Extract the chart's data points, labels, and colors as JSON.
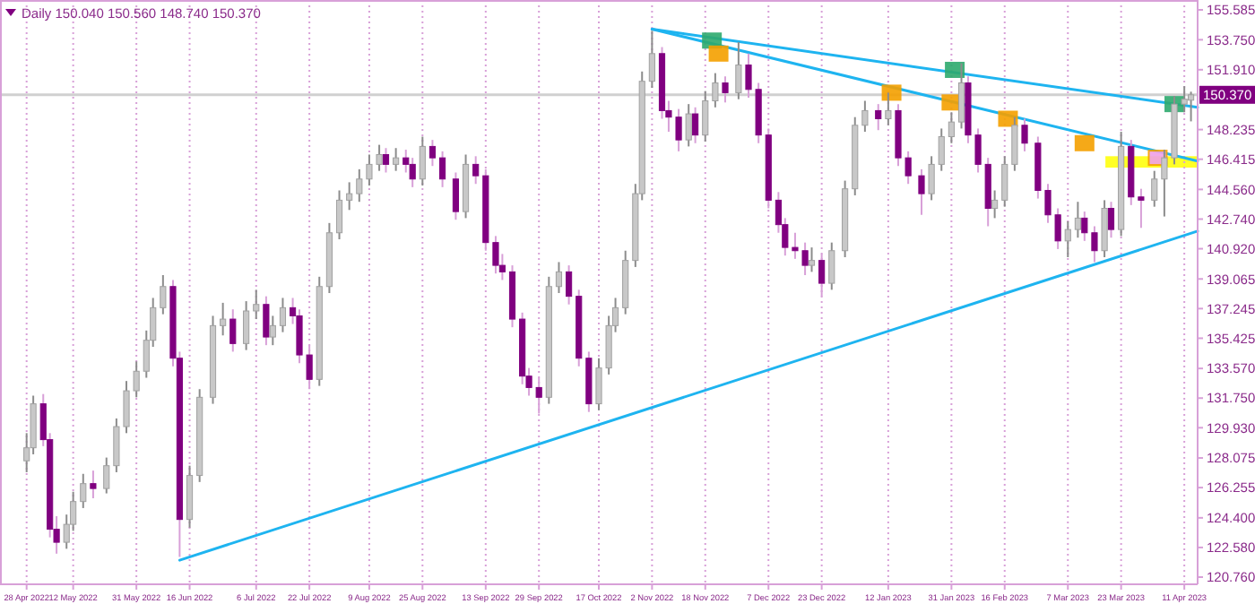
{
  "chart_data": {
    "type": "candlestick",
    "title": "Daily 150.040 150.560 148.740 150.370",
    "colors": [
      "#c8c8c8",
      "#c8c8c8",
      "#800080",
      "#800080",
      "#800080",
      "#c8c8c8",
      "#c8c8c8",
      "#c8c8c8",
      "#800080",
      "#c8c8c8",
      "#c8c8c8",
      "#c8c8c8",
      "#c8c8c8",
      "#c8c8c8",
      "#c8c8c8",
      "#c8c8c8",
      "#800080",
      "#800080",
      "#c8c8c8",
      "#c8c8c8",
      "#c8c8c8",
      "#c8c8c8",
      "#800080",
      "#c8c8c8",
      "#c8c8c8",
      "#800080",
      "#c8c8c8",
      "#c8c8c8",
      "#800080",
      "#800080",
      "#800080",
      "#c8c8c8",
      "#c8c8c8",
      "#c8c8c8",
      "#c8c8c8",
      "#c8c8c8",
      "#c8c8c8",
      "#c8c8c8",
      "#800080",
      "#c8c8c8",
      "#800080",
      "#800080",
      "#c8c8c8",
      "#800080",
      "#800080",
      "#800080",
      "#c8c8c8",
      "#800080",
      "#800080",
      "#800080",
      "#800080",
      "#800080",
      "#800080",
      "#800080",
      "#800080",
      "#c8c8c8",
      "#c8c8c8",
      "#800080",
      "#800080",
      "#800080",
      "#c8c8c8",
      "#c8c8c8",
      "#c8c8c8",
      "#c8c8c8",
      "#c8c8c8",
      "#c8c8c8",
      "#c8c8c8",
      "#800080",
      "#800080",
      "#800080",
      "#c8c8c8",
      "#800080",
      "#c8c8c8",
      "#c8c8c8",
      "#800080",
      "#c8c8c8",
      "#800080",
      "#800080",
      "#800080",
      "#800080",
      "#800080",
      "#800080",
      "#800080",
      "#c8c8c8",
      "#800080",
      "#c8c8c8",
      "#c8c8c8",
      "#c8c8c8",
      "#c8c8c8",
      "#800080",
      "#c8c8c8",
      "#800080",
      "#800080",
      "#800080",
      "#c8c8c8",
      "#c8c8c8",
      "#c8c8c8",
      "#c8c8c8",
      "#800080",
      "#800080",
      "#800080",
      "#c8c8c8",
      "#c8c8c8",
      "#c8c8c8",
      "#800080",
      "#800080",
      "#800080",
      "#800080",
      "#c8c8c8",
      "#c8c8c8",
      "#800080",
      "#800080",
      "#c8c8c8",
      "#800080",
      "#c8c8c8",
      "#800080",
      "#800080",
      "#c8c8c8",
      "#c8c8c8",
      "#c8c8c8",
      "#c8c8c8",
      "#c8c8c8"
    ],
    "x": [
      "2022-04-28",
      "2022-04-30",
      "2022-05-03",
      "2022-05-05",
      "2022-05-07",
      "2022-05-10",
      "2022-05-12",
      "2022-05-15",
      "2022-05-18",
      "2022-05-22",
      "2022-05-25",
      "2022-05-28",
      "2022-05-31",
      "2022-06-03",
      "2022-06-05",
      "2022-06-08",
      "2022-06-11",
      "2022-06-13",
      "2022-06-16",
      "2022-06-19",
      "2022-06-23",
      "2022-06-26",
      "2022-06-29",
      "2022-07-03",
      "2022-07-06",
      "2022-07-09",
      "2022-07-11",
      "2022-07-14",
      "2022-07-17",
      "2022-07-19",
      "2022-07-22",
      "2022-07-25",
      "2022-07-28",
      "2022-07-31",
      "2022-08-03",
      "2022-08-06",
      "2022-08-09",
      "2022-08-12",
      "2022-08-14",
      "2022-08-17",
      "2022-08-20",
      "2022-08-22",
      "2022-08-25",
      "2022-08-28",
      "2022-08-31",
      "2022-09-04",
      "2022-09-07",
      "2022-09-10",
      "2022-09-13",
      "2022-09-16",
      "2022-09-18",
      "2022-09-21",
      "2022-09-24",
      "2022-09-26",
      "2022-09-29",
      "2022-10-02",
      "2022-10-05",
      "2022-10-08",
      "2022-10-11",
      "2022-10-14",
      "2022-10-17",
      "2022-10-20",
      "2022-10-22",
      "2022-10-25",
      "2022-10-28",
      "2022-10-30",
      "2022-11-02",
      "2022-11-05",
      "2022-11-07",
      "2022-11-10",
      "2022-11-13",
      "2022-11-15",
      "2022-11-18",
      "2022-11-21",
      "2022-11-24",
      "2022-11-28",
      "2022-12-01",
      "2022-12-04",
      "2022-12-07",
      "2022-12-10",
      "2022-12-12",
      "2022-12-15",
      "2022-12-18",
      "2022-12-20",
      "2022-12-23",
      "2022-12-26",
      "2022-12-30",
      "2023-01-02",
      "2023-01-05",
      "2023-01-09",
      "2023-01-12",
      "2023-01-15",
      "2023-01-18",
      "2023-01-22",
      "2023-01-25",
      "2023-01-28",
      "2023-01-31",
      "2023-02-03",
      "2023-02-05",
      "2023-02-08",
      "2023-02-11",
      "2023-02-13",
      "2023-02-16",
      "2023-02-19",
      "2023-02-22",
      "2023-02-26",
      "2023-03-01",
      "2023-03-04",
      "2023-03-07",
      "2023-03-10",
      "2023-03-12",
      "2023-03-15",
      "2023-03-18",
      "2023-03-20",
      "2023-03-23",
      "2023-03-26",
      "2023-03-29",
      "2023-04-02",
      "2023-04-05",
      "2023-04-08",
      "2023-04-11",
      "2023-04-13"
    ],
    "ohlc": [
      [
        127.9,
        129.6,
        127.2,
        128.7
      ],
      [
        128.7,
        131.9,
        128.3,
        131.4
      ],
      [
        131.4,
        132.0,
        128.8,
        129.2
      ],
      [
        129.2,
        129.6,
        123.2,
        123.7
      ],
      [
        123.7,
        124.5,
        122.2,
        122.9
      ],
      [
        122.9,
        124.6,
        122.5,
        124.0
      ],
      [
        124.0,
        126.0,
        123.6,
        125.4
      ],
      [
        125.4,
        127.1,
        125.0,
        126.5
      ],
      [
        126.5,
        127.3,
        125.6,
        126.2
      ],
      [
        126.2,
        128.1,
        125.9,
        127.6
      ],
      [
        127.6,
        130.5,
        127.2,
        130.0
      ],
      [
        130.0,
        132.8,
        129.6,
        132.2
      ],
      [
        132.2,
        134.0,
        131.8,
        133.4
      ],
      [
        133.4,
        135.9,
        133.0,
        135.3
      ],
      [
        135.3,
        137.9,
        134.9,
        137.3
      ],
      [
        137.3,
        139.3,
        136.9,
        138.6
      ],
      [
        138.6,
        139.0,
        133.7,
        134.2
      ],
      [
        134.2,
        134.6,
        122.0,
        124.3
      ],
      [
        124.3,
        127.6,
        123.8,
        127.0
      ],
      [
        127.0,
        132.3,
        126.6,
        131.8
      ],
      [
        131.8,
        136.8,
        131.4,
        136.2
      ],
      [
        136.2,
        137.6,
        135.6,
        136.6
      ],
      [
        136.6,
        137.2,
        134.6,
        135.1
      ],
      [
        135.1,
        137.7,
        134.7,
        137.1
      ],
      [
        137.1,
        138.4,
        136.6,
        137.5
      ],
      [
        137.5,
        138.0,
        135.0,
        135.5
      ],
      [
        135.5,
        136.8,
        135.0,
        136.2
      ],
      [
        136.2,
        137.9,
        135.8,
        137.3
      ],
      [
        137.3,
        137.9,
        136.3,
        136.8
      ],
      [
        136.8,
        137.2,
        133.9,
        134.4
      ],
      [
        134.4,
        135.0,
        132.3,
        132.9
      ],
      [
        132.9,
        139.2,
        132.5,
        138.6
      ],
      [
        138.6,
        142.5,
        138.2,
        141.9
      ],
      [
        141.9,
        144.5,
        141.5,
        143.9
      ],
      [
        143.9,
        145.0,
        143.3,
        144.3
      ],
      [
        144.3,
        145.8,
        143.8,
        145.2
      ],
      [
        145.2,
        146.7,
        144.8,
        146.1
      ],
      [
        146.1,
        147.3,
        145.7,
        146.7
      ],
      [
        146.7,
        147.1,
        145.6,
        146.1
      ],
      [
        146.1,
        147.1,
        145.7,
        146.5
      ],
      [
        146.5,
        147.0,
        145.6,
        146.1
      ],
      [
        146.1,
        146.5,
        144.7,
        145.2
      ],
      [
        145.2,
        147.8,
        144.8,
        147.2
      ],
      [
        147.2,
        147.6,
        146.0,
        146.5
      ],
      [
        146.5,
        146.9,
        144.7,
        145.2
      ],
      [
        145.2,
        145.6,
        142.7,
        143.2
      ],
      [
        143.2,
        146.7,
        142.8,
        146.1
      ],
      [
        146.1,
        146.6,
        144.9,
        145.4
      ],
      [
        145.4,
        145.8,
        140.8,
        141.3
      ],
      [
        141.3,
        141.7,
        139.4,
        139.9
      ],
      [
        139.9,
        140.6,
        139.0,
        139.5
      ],
      [
        139.5,
        139.9,
        136.1,
        136.6
      ],
      [
        136.6,
        137.0,
        132.6,
        133.1
      ],
      [
        133.1,
        133.6,
        131.9,
        132.4
      ],
      [
        132.4,
        133.0,
        130.8,
        131.8
      ],
      [
        131.8,
        139.2,
        131.4,
        138.6
      ],
      [
        138.6,
        140.1,
        138.2,
        139.5
      ],
      [
        139.5,
        139.9,
        137.5,
        138.0
      ],
      [
        138.0,
        138.4,
        133.7,
        134.2
      ],
      [
        134.2,
        134.6,
        130.9,
        131.4
      ],
      [
        131.4,
        134.2,
        131.0,
        133.6
      ],
      [
        133.6,
        136.8,
        133.2,
        136.2
      ],
      [
        136.2,
        137.9,
        135.8,
        137.3
      ],
      [
        137.3,
        140.8,
        136.9,
        140.2
      ],
      [
        140.2,
        144.9,
        139.8,
        144.3
      ],
      [
        144.3,
        151.8,
        143.9,
        151.2
      ],
      [
        151.2,
        154.3,
        150.8,
        152.9
      ],
      [
        152.9,
        153.3,
        148.9,
        149.4
      ],
      [
        149.4,
        150.0,
        148.1,
        149.0
      ],
      [
        149.0,
        149.5,
        146.9,
        147.6
      ],
      [
        147.6,
        149.8,
        147.2,
        149.2
      ],
      [
        149.2,
        149.6,
        147.4,
        147.9
      ],
      [
        147.9,
        150.6,
        147.5,
        150.0
      ],
      [
        150.0,
        151.7,
        149.6,
        151.1
      ],
      [
        151.1,
        151.5,
        149.9,
        150.5
      ],
      [
        150.5,
        153.6,
        150.1,
        152.2
      ],
      [
        152.2,
        152.9,
        150.2,
        150.7
      ],
      [
        150.7,
        151.1,
        147.4,
        147.9
      ],
      [
        147.9,
        148.3,
        143.4,
        143.9
      ],
      [
        143.9,
        144.4,
        141.9,
        142.4
      ],
      [
        142.4,
        142.8,
        140.5,
        141.0
      ],
      [
        141.0,
        141.9,
        140.3,
        140.8
      ],
      [
        140.8,
        141.3,
        139.3,
        139.9
      ],
      [
        139.9,
        141.0,
        139.5,
        140.2
      ],
      [
        140.2,
        140.6,
        138.0,
        138.8
      ],
      [
        138.8,
        141.3,
        138.4,
        140.8
      ],
      [
        140.8,
        145.1,
        140.4,
        144.6
      ],
      [
        144.6,
        149.0,
        144.2,
        148.5
      ],
      [
        148.5,
        150.0,
        148.1,
        149.4
      ],
      [
        149.4,
        149.8,
        148.2,
        148.9
      ],
      [
        148.9,
        150.5,
        148.5,
        149.4
      ],
      [
        149.4,
        149.8,
        146.0,
        146.5
      ],
      [
        146.5,
        146.9,
        144.9,
        145.4
      ],
      [
        145.4,
        145.8,
        143.0,
        144.3
      ],
      [
        144.3,
        146.6,
        143.9,
        146.1
      ],
      [
        146.1,
        148.3,
        145.7,
        147.8
      ],
      [
        147.8,
        149.3,
        147.4,
        148.7
      ],
      [
        148.7,
        152.3,
        148.3,
        151.1
      ],
      [
        151.1,
        151.5,
        147.4,
        147.9
      ],
      [
        147.9,
        148.3,
        145.6,
        146.1
      ],
      [
        146.1,
        146.5,
        142.3,
        143.4
      ],
      [
        143.4,
        144.5,
        142.8,
        143.9
      ],
      [
        143.9,
        146.6,
        143.5,
        146.1
      ],
      [
        146.1,
        149.0,
        145.7,
        148.5
      ],
      [
        148.5,
        148.9,
        146.9,
        147.4
      ],
      [
        147.4,
        147.8,
        144.0,
        144.5
      ],
      [
        144.5,
        144.9,
        142.5,
        143.0
      ],
      [
        143.0,
        143.4,
        140.9,
        141.4
      ],
      [
        141.4,
        142.6,
        140.4,
        142.1
      ],
      [
        142.1,
        143.8,
        141.6,
        142.8
      ],
      [
        142.8,
        143.2,
        141.4,
        141.9
      ],
      [
        141.9,
        142.3,
        140.1,
        140.8
      ],
      [
        140.8,
        143.9,
        140.4,
        143.4
      ],
      [
        143.4,
        143.8,
        141.6,
        142.1
      ],
      [
        142.1,
        148.1,
        141.7,
        147.2
      ],
      [
        147.2,
        147.6,
        143.6,
        144.1
      ],
      [
        144.1,
        144.6,
        142.2,
        143.9
      ],
      [
        143.9,
        145.7,
        143.5,
        145.2
      ],
      [
        145.2,
        147.0,
        142.9,
        146.5
      ],
      [
        146.5,
        150.3,
        146.1,
        149.8
      ],
      [
        149.8,
        150.9,
        149.3,
        150.1
      ],
      [
        150.04,
        150.56,
        148.74,
        150.37
      ]
    ],
    "series": [
      {
        "type": "line",
        "color": "#1eb4f0",
        "x": [
          "2022-06-13",
          "2023-04-15"
        ],
        "values": [
          121.8,
          142.0
        ]
      },
      {
        "type": "line",
        "color": "#1eb4f0",
        "x": [
          "2022-11-02",
          "2023-04-15"
        ],
        "values": [
          154.4,
          149.6
        ]
      },
      {
        "type": "line",
        "color": "#1eb4f0",
        "x": [
          "2022-11-02",
          "2023-04-15"
        ],
        "values": [
          154.4,
          146.3
        ]
      },
      {
        "type": "scatter",
        "marker": "square",
        "color": "#2eaa6e",
        "x": [
          "2022-11-20",
          "2023-02-01",
          "2023-04-08"
        ],
        "values": [
          153.7,
          151.9,
          149.8
        ]
      },
      {
        "type": "scatter",
        "marker": "square",
        "color": "#f5a000",
        "colors": [
          "#f5a000",
          "#f5a000",
          "#f5a000",
          "#f5a000",
          "#f5a000",
          "#f0a0e8"
        ],
        "x": [
          "2022-11-22",
          "2023-01-13",
          "2023-01-31",
          "2023-02-17",
          "2023-03-12",
          "2023-04-03"
        ],
        "values": [
          152.9,
          150.5,
          149.9,
          148.9,
          147.4,
          146.5
        ]
      }
    ],
    "ref_lines": [
      {
        "axis": "y",
        "value": 150.37,
        "label": "150.370",
        "color": "#d0d0d0"
      }
    ],
    "xlim": [
      "2022-04-20",
      "2023-04-15"
    ],
    "xticks": [
      {
        "value": "2022-04-28",
        "label": "28 Apr 2022"
      },
      {
        "value": "2022-05-12",
        "label": "12 May 2022"
      },
      {
        "value": "2022-05-31",
        "label": "31 May 2022"
      },
      {
        "value": "2022-06-16",
        "label": "16 Jun 2022"
      },
      {
        "value": "2022-07-06",
        "label": "6 Jul 2022"
      },
      {
        "value": "2022-07-22",
        "label": "22 Jul 2022"
      },
      {
        "value": "2022-08-09",
        "label": "9 Aug 2022"
      },
      {
        "value": "2022-08-25",
        "label": "25 Aug 2022"
      },
      {
        "value": "2022-09-13",
        "label": "13 Sep 2022"
      },
      {
        "value": "2022-09-29",
        "label": "29 Sep 2022"
      },
      {
        "value": "2022-10-17",
        "label": "17 Oct 2022"
      },
      {
        "value": "2022-11-02",
        "label": "2 Nov 2022"
      },
      {
        "value": "2022-11-18",
        "label": "18 Nov 2022"
      },
      {
        "value": "2022-12-07",
        "label": "7 Dec 2022"
      },
      {
        "value": "2022-12-23",
        "label": "23 Dec 2022"
      },
      {
        "value": "2023-01-12",
        "label": "12 Jan 2023"
      },
      {
        "value": "2023-01-31",
        "label": "31 Jan 2023"
      },
      {
        "value": "2023-02-16",
        "label": "16 Feb 2023"
      },
      {
        "value": "2023-03-07",
        "label": "7 Mar 2023"
      },
      {
        "value": "2023-03-23",
        "label": "23 Mar 2023"
      },
      {
        "value": "2023-04-11",
        "label": "11 Apr 2023"
      }
    ],
    "ylim": [
      120.32,
      156.19
    ],
    "yticks": [
      155.585,
      {
        "value": 153.75,
        "label": "153.750"
      },
      {
        "value": 151.91,
        "label": "151.910"
      },
      148.235,
      146.415,
      {
        "value": 144.56,
        "label": "144.560"
      },
      {
        "value": 142.74,
        "label": "142.740"
      },
      {
        "value": 140.92,
        "label": "140.920"
      },
      139.065,
      137.245,
      135.425,
      {
        "value": 133.57,
        "label": "133.570"
      },
      {
        "value": 131.75,
        "label": "131.750"
      },
      {
        "value": 129.93,
        "label": "129.930"
      },
      128.075,
      126.255,
      {
        "value": 124.4,
        "label": "124.400"
      },
      {
        "value": 122.58,
        "label": "122.580"
      },
      {
        "value": 120.76,
        "label": "120.760"
      }
    ],
    "grid": "x"
  }
}
